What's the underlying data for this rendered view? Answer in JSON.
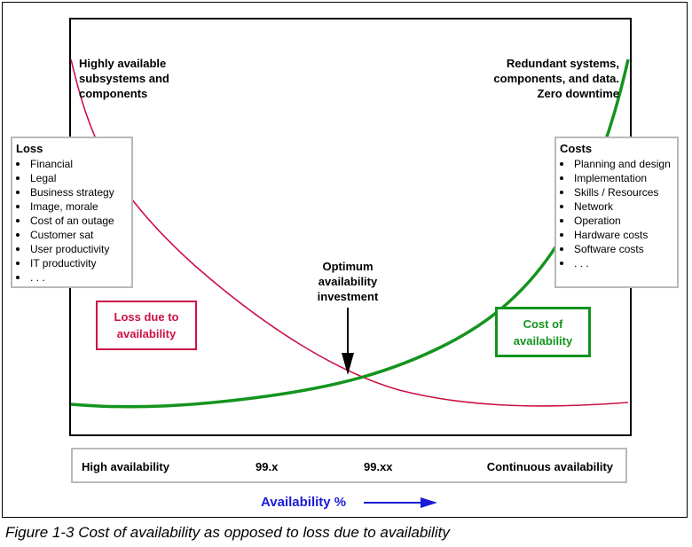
{
  "top_left_label": [
    "Highly available",
    "subsystems and",
    "components"
  ],
  "top_right_label": [
    "Redundant systems,",
    "components, and data.",
    "Zero downtime"
  ],
  "loss_box": {
    "title": "Loss",
    "items": [
      "Financial",
      "Legal",
      "Business strategy",
      "Image, morale",
      "Cost of an outage",
      "Customer sat",
      "User productivity",
      "IT productivity",
      ". . ."
    ]
  },
  "costs_box": {
    "title": "Costs",
    "items": [
      "Planning and design",
      "Implementation",
      "Skills / Resources",
      "Network",
      "Operation",
      "Hardware costs",
      "Software costs",
      ". . ."
    ]
  },
  "optimum_label": [
    "Optimum",
    "availability",
    "investment"
  ],
  "loss_tag": [
    "Loss due to",
    "availability"
  ],
  "cost_tag": [
    "Cost of",
    "availability"
  ],
  "axis_labels": {
    "high": "High availability",
    "x1": "99.x",
    "x2": "99.xx",
    "continuous": "Continuous availability"
  },
  "axis_title": "Availability %",
  "caption": "Figure 1-3   Cost of availability as opposed to loss due to availability",
  "colors": {
    "loss": "#cc1144",
    "cost": "#14941e",
    "axis_title": "#1b1bd6",
    "box_border": "#b9b9b9"
  }
}
